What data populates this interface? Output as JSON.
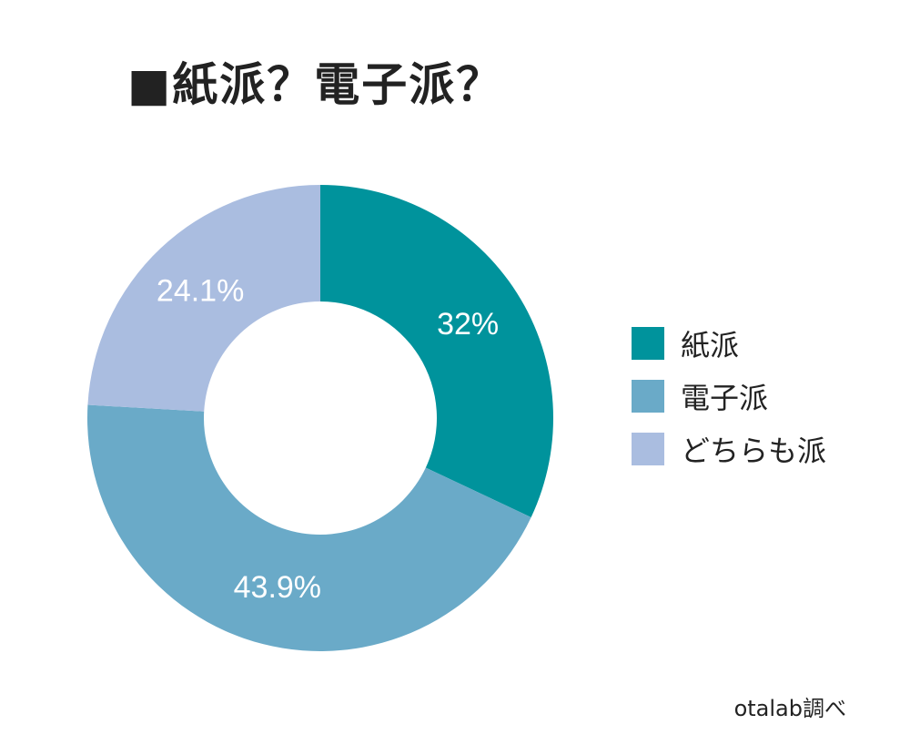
{
  "chart_data": {
    "type": "pie",
    "title": "■紙派？電子派？",
    "donut": true,
    "categories": [
      "紙派",
      "電子派",
      "どちらも派"
    ],
    "values": [
      32,
      43.9,
      24.1
    ],
    "data_labels": [
      "32%",
      "43.9%",
      "24.1%"
    ],
    "colors": [
      "#00939c",
      "#6aaac8",
      "#aabde0"
    ],
    "legend_position": "right",
    "legend": [
      "紙派",
      "電子派",
      "どちらも派"
    ],
    "start": "12 o'clock, clockwise"
  },
  "source_note": "otalab調べ"
}
